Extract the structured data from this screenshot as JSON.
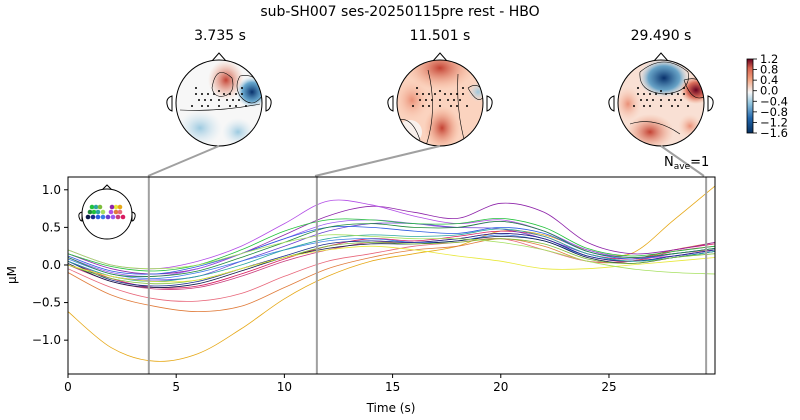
{
  "title": "sub-SH007 ses-20250115pre rest - HBO",
  "topomaps": [
    {
      "time_label": "3.735 s",
      "time": 3.735
    },
    {
      "time_label": "11.501 s",
      "time": 11.501
    },
    {
      "time_label": "29.490 s",
      "time": 29.49
    }
  ],
  "colorbar": {
    "ticks": [
      "1.2",
      "0.8",
      "0.4",
      "0.0",
      "−0.4",
      "−0.8",
      "−1.2",
      "−1.6"
    ],
    "min": -1.6,
    "max": 1.2
  },
  "nave": {
    "base": "N",
    "sub": "ave",
    "value": "=1"
  },
  "chart_data": {
    "type": "line",
    "title": "sub-SH007 ses-20250115pre rest - HBO",
    "xlabel": "Time (s)",
    "ylabel": "µM",
    "xlim": [
      0,
      29.9
    ],
    "ylim": [
      -1.45,
      1.17
    ],
    "xticks": [
      0,
      5,
      10,
      15,
      20,
      25
    ],
    "yticks": [
      -1.0,
      -0.5,
      0.0,
      0.5,
      1.0
    ],
    "ytick_labels": [
      "−1.0",
      "−0.5",
      "0.0",
      "0.5",
      "1.0"
    ],
    "xtick_labels": [
      "0",
      "5",
      "10",
      "15",
      "20",
      "25"
    ],
    "vlines": [
      3.735,
      11.501,
      29.49
    ],
    "grid": false,
    "series": [
      {
        "color": "#e6a817",
        "x": [
          0,
          2,
          4,
          6,
          8,
          10,
          12,
          14,
          16,
          18,
          20,
          22,
          24,
          26,
          28,
          29.9
        ],
        "values": [
          -0.62,
          -1.1,
          -1.28,
          -1.18,
          -0.85,
          -0.45,
          -0.15,
          0.05,
          0.15,
          0.25,
          0.45,
          0.4,
          0.2,
          0.15,
          0.6,
          1.05
        ]
      },
      {
        "color": "#e07b3a",
        "x": [
          0,
          2,
          4,
          6,
          8,
          10,
          12,
          14,
          16,
          18,
          20,
          22,
          24,
          26,
          28,
          29.9
        ],
        "values": [
          -0.1,
          -0.4,
          -0.55,
          -0.62,
          -0.55,
          -0.3,
          -0.05,
          0.1,
          0.2,
          0.25,
          0.35,
          0.25,
          0.05,
          0.05,
          0.2,
          0.3
        ]
      },
      {
        "color": "#e8677a",
        "x": [
          0,
          2,
          4,
          6,
          8,
          10,
          12,
          14,
          16,
          18,
          20,
          22,
          24,
          26,
          28,
          29.9
        ],
        "values": [
          -0.05,
          -0.3,
          -0.45,
          -0.48,
          -0.38,
          -0.15,
          0.05,
          0.15,
          0.25,
          0.3,
          0.35,
          0.2,
          0.05,
          0.05,
          0.15,
          0.2
        ]
      },
      {
        "color": "#c93b7c",
        "x": [
          0,
          2,
          4,
          6,
          8,
          10,
          12,
          14,
          16,
          18,
          20,
          22,
          24,
          26,
          28,
          29.9
        ],
        "values": [
          0.0,
          -0.22,
          -0.32,
          -0.3,
          -0.15,
          0.05,
          0.2,
          0.3,
          0.3,
          0.35,
          0.42,
          0.35,
          0.12,
          0.05,
          0.18,
          0.25
        ]
      },
      {
        "color": "#d81b60",
        "x": [
          0,
          2,
          4,
          6,
          8,
          10,
          12,
          14,
          16,
          18,
          20,
          22,
          24,
          26,
          28,
          29.9
        ],
        "values": [
          0.05,
          -0.18,
          -0.3,
          -0.28,
          -0.12,
          0.08,
          0.25,
          0.35,
          0.32,
          0.38,
          0.45,
          0.38,
          0.15,
          0.08,
          0.2,
          0.28
        ]
      },
      {
        "color": "#8e24aa",
        "x": [
          0,
          2,
          4,
          6,
          8,
          10,
          12,
          14,
          16,
          18,
          20,
          22,
          24,
          26,
          28,
          29.9
        ],
        "values": [
          0.15,
          -0.05,
          -0.12,
          -0.05,
          0.15,
          0.4,
          0.65,
          0.78,
          0.7,
          0.62,
          0.82,
          0.7,
          0.3,
          0.15,
          0.2,
          0.3
        ]
      },
      {
        "color": "#b24de6",
        "x": [
          0,
          2,
          4,
          6,
          8,
          10,
          12,
          14,
          16,
          18,
          20,
          22,
          24,
          26,
          28,
          29.9
        ],
        "values": [
          0.2,
          0.0,
          -0.05,
          0.05,
          0.25,
          0.55,
          0.85,
          0.8,
          0.65,
          0.55,
          0.6,
          0.45,
          0.2,
          0.1,
          0.12,
          0.2
        ]
      },
      {
        "color": "#9c5cf0",
        "x": [
          0,
          2,
          4,
          6,
          8,
          10,
          12,
          14,
          16,
          18,
          20,
          22,
          24,
          26,
          28,
          29.9
        ],
        "values": [
          0.1,
          -0.1,
          -0.15,
          -0.05,
          0.15,
          0.35,
          0.55,
          0.6,
          0.55,
          0.5,
          0.58,
          0.45,
          0.2,
          0.1,
          0.15,
          0.22
        ]
      },
      {
        "color": "#6a3fd1",
        "x": [
          0,
          2,
          4,
          6,
          8,
          10,
          12,
          14,
          16,
          18,
          20,
          22,
          24,
          26,
          28,
          29.9
        ],
        "values": [
          0.05,
          -0.15,
          -0.2,
          -0.15,
          0.05,
          0.25,
          0.45,
          0.55,
          0.55,
          0.5,
          0.48,
          0.35,
          0.15,
          0.05,
          0.12,
          0.2
        ]
      },
      {
        "color": "#2b5be0",
        "x": [
          0,
          2,
          4,
          6,
          8,
          10,
          12,
          14,
          16,
          18,
          20,
          22,
          24,
          26,
          28,
          29.9
        ],
        "values": [
          0.12,
          -0.08,
          -0.12,
          -0.02,
          0.15,
          0.35,
          0.5,
          0.5,
          0.45,
          0.42,
          0.5,
          0.42,
          0.18,
          0.08,
          0.15,
          0.22
        ]
      },
      {
        "color": "#3b7de8",
        "x": [
          0,
          2,
          4,
          6,
          8,
          10,
          12,
          14,
          16,
          18,
          20,
          22,
          24,
          26,
          28,
          29.9
        ],
        "values": [
          0.08,
          -0.12,
          -0.18,
          -0.1,
          0.05,
          0.2,
          0.32,
          0.35,
          0.3,
          0.32,
          0.4,
          0.32,
          0.12,
          0.05,
          0.1,
          0.18
        ]
      },
      {
        "color": "#1a2b8c",
        "x": [
          0,
          2,
          4,
          6,
          8,
          10,
          12,
          14,
          16,
          18,
          20,
          22,
          24,
          26,
          28,
          29.9
        ],
        "values": [
          0.05,
          -0.2,
          -0.28,
          -0.22,
          -0.05,
          0.12,
          0.28,
          0.32,
          0.3,
          0.35,
          0.42,
          0.35,
          0.12,
          0.05,
          0.12,
          0.2
        ]
      },
      {
        "color": "#0d1a4a",
        "x": [
          0,
          2,
          4,
          6,
          8,
          10,
          12,
          14,
          16,
          18,
          20,
          22,
          24,
          26,
          28,
          29.9
        ],
        "values": [
          0.02,
          -0.22,
          -0.3,
          -0.25,
          -0.08,
          0.1,
          0.22,
          0.28,
          0.28,
          0.32,
          0.38,
          0.32,
          0.1,
          0.02,
          0.1,
          0.18
        ]
      },
      {
        "color": "#1f8a3a",
        "x": [
          0,
          2,
          4,
          6,
          8,
          10,
          12,
          14,
          16,
          18,
          20,
          22,
          24,
          26,
          28,
          29.9
        ],
        "values": [
          0.1,
          -0.12,
          -0.15,
          -0.08,
          0.1,
          0.3,
          0.5,
          0.55,
          0.5,
          0.5,
          0.58,
          0.45,
          0.18,
          0.1,
          0.15,
          0.22
        ]
      },
      {
        "color": "#22c23b",
        "x": [
          0,
          2,
          4,
          6,
          8,
          10,
          12,
          14,
          16,
          18,
          20,
          22,
          24,
          26,
          28,
          29.9
        ],
        "values": [
          0.15,
          -0.02,
          -0.08,
          0.0,
          0.2,
          0.45,
          0.6,
          0.6,
          0.55,
          0.55,
          0.62,
          0.5,
          0.22,
          0.12,
          0.18,
          0.25
        ]
      },
      {
        "color": "#2ba7a0",
        "x": [
          0,
          2,
          4,
          6,
          8,
          10,
          12,
          14,
          16,
          18,
          20,
          22,
          24,
          26,
          28,
          29.9
        ],
        "values": [
          0.05,
          -0.15,
          -0.22,
          -0.15,
          0.0,
          0.2,
          0.35,
          0.4,
          0.38,
          0.4,
          0.48,
          0.38,
          0.15,
          0.05,
          0.1,
          0.18
        ]
      },
      {
        "color": "#7cbd3a",
        "x": [
          0,
          2,
          4,
          6,
          8,
          10,
          12,
          14,
          16,
          18,
          20,
          22,
          24,
          26,
          28,
          29.9
        ],
        "values": [
          0.0,
          -0.18,
          -0.25,
          -0.2,
          -0.05,
          0.1,
          0.25,
          0.3,
          0.28,
          0.3,
          0.35,
          0.28,
          0.08,
          0.02,
          0.1,
          0.15
        ]
      },
      {
        "color": "#e8e83a",
        "x": [
          0,
          2,
          4,
          6,
          8,
          10,
          12,
          14,
          16,
          18,
          20,
          22,
          24,
          26,
          28,
          29.9
        ],
        "values": [
          0.0,
          -0.15,
          -0.22,
          -0.2,
          -0.05,
          0.1,
          0.2,
          0.25,
          0.2,
          0.12,
          0.05,
          -0.05,
          -0.05,
          0.0,
          0.05,
          0.1
        ]
      },
      {
        "color": "#a6e060",
        "x": [
          0,
          2,
          4,
          6,
          8,
          10,
          12,
          14,
          16,
          18,
          20,
          22,
          24,
          26,
          28,
          29.9
        ],
        "values": [
          0.2,
          0.0,
          -0.05,
          0.0,
          0.15,
          0.3,
          0.4,
          0.38,
          0.35,
          0.35,
          0.3,
          0.2,
          0.05,
          -0.05,
          -0.1,
          -0.12
        ]
      }
    ]
  }
}
